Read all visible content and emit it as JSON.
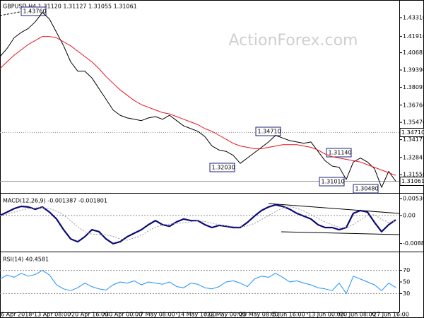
{
  "chart_data": [
    {
      "type": "line",
      "title": "GBPUSD,H4  1.31120 1.31127 1.31055 1.31061",
      "watermark": "ActionForex.com",
      "xlim": [
        0,
        56.5
      ],
      "ylim": [
        1.3024,
        1.4463
      ],
      "yticks": [
        {
          "value": 1.4331,
          "label": "1.43310"
        },
        {
          "value": 1.4191,
          "label": "1.41910"
        },
        {
          "value": 1.40685,
          "label": "1.40685"
        },
        {
          "value": 1.3939,
          "label": "1.39390"
        },
        {
          "value": 1.38095,
          "label": "1.38095"
        },
        {
          "value": 1.3676,
          "label": "1.36760"
        },
        {
          "value": 1.3547,
          "label": "1.35470"
        },
        1.34175,
        1.32845,
        {
          "value": 1.3155,
          "label": "1.31550"
        }
      ],
      "marked_levels": [
        {
          "value": 1.3471,
          "label": "1.34710"
        },
        1.31061
      ],
      "annotations": [
        "1.43760",
        "1.34710",
        "1.32030",
        "1.31140",
        "1.31010",
        "1.30480"
      ],
      "series": [
        {
          "color": "#000000",
          "style": "solid",
          "values": [
            1.404,
            1.41,
            1.418,
            1.422,
            1.425,
            1.43,
            1.437,
            1.432,
            1.422,
            1.412,
            1.4,
            1.393,
            1.393,
            1.388,
            1.38,
            1.372,
            1.364,
            1.36,
            1.358,
            1.357,
            1.356,
            1.358,
            1.359,
            1.357,
            1.36,
            1.356,
            1.352,
            1.35,
            1.348,
            1.344,
            1.337,
            1.334,
            1.333,
            1.33,
            1.324,
            1.328,
            1.332,
            1.336,
            1.34,
            1.345,
            1.343,
            1.341,
            1.34,
            1.339,
            1.34,
            1.333,
            1.326,
            1.322,
            1.321,
            1.312,
            1.325,
            1.328,
            1.325,
            1.32,
            1.306,
            1.318,
            1.31061
          ]
        },
        {
          "color": "#e8141e",
          "style": "solid",
          "values": [
            1.395,
            1.4,
            1.405,
            1.409,
            1.413,
            1.416,
            1.419,
            1.419,
            1.418,
            1.415,
            1.412,
            1.408,
            1.404,
            1.4,
            1.395,
            1.389,
            1.384,
            1.379,
            1.375,
            1.371,
            1.368,
            1.366,
            1.364,
            1.362,
            1.361,
            1.359,
            1.357,
            1.355,
            1.353,
            1.35,
            1.348,
            1.345,
            1.342,
            1.339,
            1.337,
            1.336,
            1.335,
            1.335,
            1.336,
            1.337,
            1.338,
            1.338,
            1.338,
            1.337,
            1.336,
            1.334,
            1.331,
            1.329,
            1.328,
            1.327,
            1.326,
            1.325,
            1.323,
            1.321,
            1.319,
            1.317,
            1.315
          ]
        }
      ]
    },
    {
      "type": "line",
      "title": "MACD(12,26,9) -0.001387 -0.001801",
      "xlim": [
        0,
        56.5
      ],
      "ylim": [
        -0.01118,
        0.00671
      ],
      "yticks": [
        0.005368,
        {
          "value": 0,
          "label": "0.00"
        },
        -0.008855
      ],
      "levels": [
        0
      ],
      "series": [
        {
          "color": "#0a0a78",
          "style": "bold",
          "values": [
            0,
            0.0011,
            0.0022,
            0.0029,
            0.0027,
            0.002,
            0.0027,
            0.0011,
            -0.0011,
            -0.0045,
            -0.0074,
            -0.0083,
            -0.0067,
            -0.0045,
            -0.0051,
            -0.0074,
            -0.0089,
            -0.0083,
            -0.0067,
            -0.0056,
            -0.0045,
            -0.0029,
            -0.0016,
            -0.0029,
            -0.0034,
            -0.002,
            -0.0011,
            -0.0016,
            -0.0016,
            -0.0029,
            -0.0038,
            -0.0031,
            -0.0034,
            -0.0038,
            -0.0038,
            -0.0022,
            -0.0002,
            0.0016,
            0.0027,
            0.0034,
            0.0029,
            0.002,
            0.0007,
            -0.0002,
            -0.0011,
            -0.0029,
            -0.0038,
            -0.0038,
            -0.0045,
            -0.0038,
            0.0007,
            0.0016,
            0.0011,
            -0.0022,
            -0.0051,
            -0.0029,
            -0.001387
          ]
        },
        {
          "color": "#9a9a9a",
          "style": "dotted",
          "values": [
            0,
            0.0004,
            0.0011,
            0.0017,
            0.0022,
            0.0024,
            0.0025,
            0.0022,
            0.0014,
            0.0001,
            -0.0016,
            -0.0036,
            -0.0051,
            -0.0059,
            -0.006,
            -0.0061,
            -0.0066,
            -0.0074,
            -0.0078,
            -0.0071,
            -0.0063,
            -0.0049,
            -0.0037,
            -0.003,
            -0.0027,
            -0.0025,
            -0.0023,
            -0.002,
            -0.0016,
            -0.0019,
            -0.0024,
            -0.0029,
            -0.0033,
            -0.0035,
            -0.0036,
            -0.0033,
            -0.0025,
            -0.0013,
            0,
            0.0013,
            0.0024,
            0.0028,
            0.0023,
            0.0014,
            0.0003,
            -0.0009,
            -0.002,
            -0.003,
            -0.0037,
            -0.004,
            -0.0028,
            -0.0014,
            0,
            0.0003,
            -0.0012,
            -0.0022,
            -0.001801
          ]
        }
      ]
    },
    {
      "type": "line",
      "title": "RSI(14) 40.4581",
      "xlim": [
        0,
        56.5
      ],
      "ylim": [
        0,
        100
      ],
      "yticks": [
        70,
        50,
        30
      ],
      "levels": [
        70,
        30
      ],
      "xticks": [
        {
          "value": 0,
          "label": "6 Apr 2018"
        },
        {
          "value": 4.7,
          "label": "13 Apr 08:00"
        },
        {
          "value": 10,
          "label": "20 Apr 16:00"
        },
        {
          "value": 14.8,
          "label": "30 Apr 00:00"
        },
        {
          "value": 19.7,
          "label": "7 May 08:00"
        },
        {
          "value": 25,
          "label": "14 May 16:00"
        },
        {
          "value": 29.2,
          "label": "22 May 00:00"
        },
        {
          "value": 33.8,
          "label": "29 May 08:00"
        },
        {
          "value": 38.5,
          "label": "5 Jun 16:00"
        },
        {
          "value": 43.5,
          "label": "13 Jun 00:00"
        },
        {
          "value": 48,
          "label": "20 Jun 08:00"
        },
        {
          "value": 52.7,
          "label": "27 Jun 16:00"
        }
      ],
      "series": [
        {
          "color": "#1e90ff",
          "style": "solid",
          "values": [
            55,
            62,
            58,
            65,
            60,
            63,
            70,
            62,
            45,
            38,
            35,
            40,
            48,
            42,
            38,
            36,
            45,
            50,
            48,
            52,
            45,
            50,
            48,
            46,
            50,
            42,
            40,
            48,
            46,
            40,
            38,
            42,
            50,
            52,
            48,
            42,
            55,
            60,
            58,
            65,
            58,
            50,
            52,
            48,
            45,
            40,
            38,
            35,
            48,
            30,
            60,
            55,
            50,
            45,
            35,
            48,
            40.4581
          ]
        }
      ]
    }
  ]
}
